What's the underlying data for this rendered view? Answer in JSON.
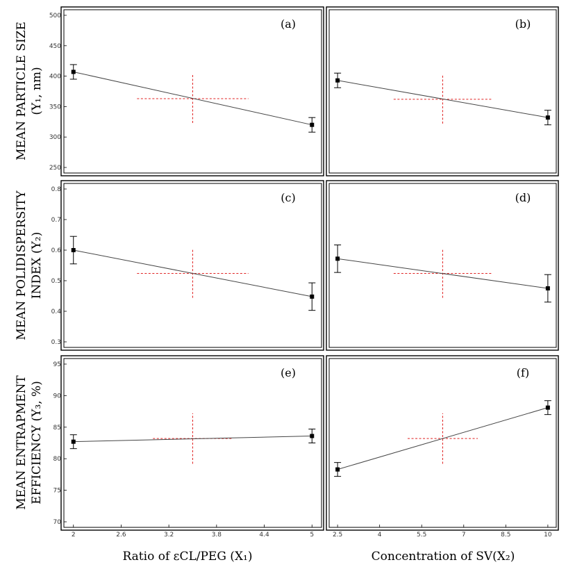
{
  "figure": {
    "row_labels": [
      [
        "MEAN PARTICLE SIZE",
        "(Y₁, nm)"
      ],
      [
        "MEAN POLIDISPERSITY",
        "INDEX (Y₂)"
      ],
      [
        "MEAN ENTRAPMENT",
        "EFFICIENCY (Y₃, %)"
      ]
    ],
    "col_labels": [
      "Ratio of εCL/PEG (X₁)",
      "Concentration of SV(X₂)"
    ]
  },
  "chart_data": [
    {
      "type": "line",
      "panel_label": "(a)",
      "x": [
        2,
        5
      ],
      "y": [
        407,
        320
      ],
      "err": [
        12,
        12
      ],
      "ylim": [
        250,
        500
      ],
      "yticks": [
        250,
        300,
        350,
        400,
        450,
        500
      ],
      "xticks": [],
      "center": {
        "x": 3.5,
        "y": 363
      },
      "center_dx": 0.7,
      "center_dy": 40,
      "xlim": [
        1.88,
        5.12
      ]
    },
    {
      "type": "line",
      "panel_label": "(b)",
      "x": [
        2.5,
        10
      ],
      "y": [
        393,
        332
      ],
      "err": [
        12,
        12
      ],
      "ylim": [
        250,
        500
      ],
      "yticks": [],
      "xticks": [],
      "center": {
        "x": 6.25,
        "y": 362
      },
      "center_dx": 1.75,
      "center_dy": 40,
      "xlim": [
        2.2,
        10.3
      ]
    },
    {
      "type": "line",
      "panel_label": "(c)",
      "x": [
        2,
        5
      ],
      "y": [
        0.6,
        0.448
      ],
      "err": [
        0.045,
        0.045
      ],
      "ylim": [
        0.3,
        0.8
      ],
      "yticks": [
        0.3,
        0.4,
        0.5,
        0.6,
        0.7,
        0.8
      ],
      "xticks": [],
      "center": {
        "x": 3.5,
        "y": 0.524
      },
      "center_dx": 0.7,
      "center_dy": 0.08,
      "xlim": [
        1.88,
        5.12
      ]
    },
    {
      "type": "line",
      "panel_label": "(d)",
      "x": [
        2.5,
        10
      ],
      "y": [
        0.572,
        0.475
      ],
      "err": [
        0.045,
        0.045
      ],
      "ylim": [
        0.3,
        0.8
      ],
      "yticks": [],
      "xticks": [],
      "center": {
        "x": 6.25,
        "y": 0.524
      },
      "center_dx": 1.75,
      "center_dy": 0.08,
      "xlim": [
        2.2,
        10.3
      ]
    },
    {
      "type": "line",
      "panel_label": "(e)",
      "x": [
        2,
        5
      ],
      "y": [
        82.7,
        83.6
      ],
      "err": [
        1.1,
        1.1
      ],
      "ylim": [
        70,
        95
      ],
      "yticks": [
        70,
        75,
        80,
        85,
        90,
        95
      ],
      "xticks": [
        2,
        2.6,
        3.2,
        3.8,
        4.4,
        5
      ],
      "center": {
        "x": 3.5,
        "y": 83.2
      },
      "center_dx": 0.5,
      "center_dy": 4,
      "xlim": [
        1.88,
        5.12
      ]
    },
    {
      "type": "line",
      "panel_label": "(f)",
      "x": [
        2.5,
        10
      ],
      "y": [
        78.3,
        88.1
      ],
      "err": [
        1.1,
        1.1
      ],
      "ylim": [
        70,
        95
      ],
      "yticks": [],
      "xticks": [
        2.5,
        4,
        5.5,
        7,
        8.5,
        10
      ],
      "center": {
        "x": 6.25,
        "y": 83.2
      },
      "center_dx": 1.25,
      "center_dy": 4,
      "xlim": [
        2.2,
        10.3
      ]
    }
  ]
}
